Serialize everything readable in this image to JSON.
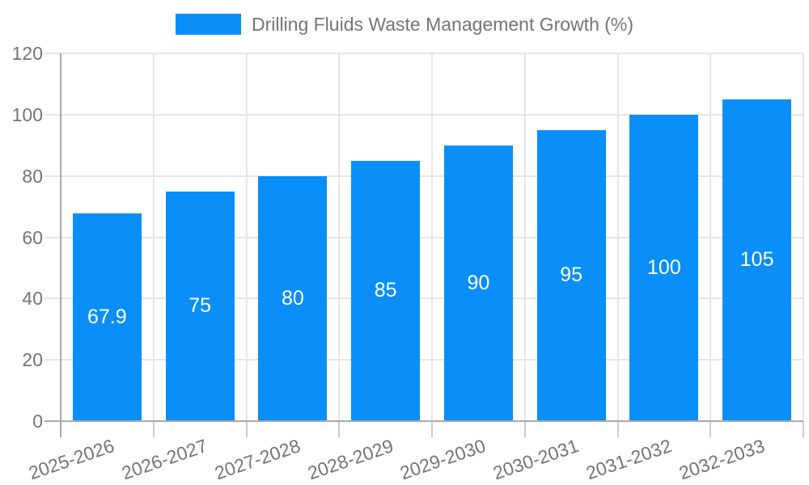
{
  "chart_data": {
    "type": "bar",
    "title": "Drilling Fluids Waste Management Growth (%)",
    "categories": [
      "2025-2026",
      "2026-2027",
      "2027-2028",
      "2028-2029",
      "2029-2030",
      "2030-2031",
      "2031-2032",
      "2032-2033"
    ],
    "values": [
      67.9,
      75,
      80,
      85,
      90,
      95,
      100,
      105
    ],
    "value_labels": [
      "67.9",
      "75",
      "80",
      "85",
      "90",
      "95",
      "100",
      "105"
    ],
    "xlabel": "",
    "ylabel": "",
    "ylim": [
      0,
      120
    ],
    "yticks": [
      0,
      20,
      40,
      60,
      80,
      100,
      120
    ],
    "grid": true,
    "legend_position": "top-center",
    "colors": {
      "bar": "#0a8ff8",
      "grid": "#e6e6e6",
      "axis": "#aaaaaa",
      "tick": "#cccccc",
      "tick_text": "#757575",
      "legend_text": "#757575",
      "value_label_text": "#ffffff",
      "background": "#ffffff"
    }
  },
  "legend": {
    "label": "Drilling Fluids Waste Management Growth (%)",
    "swatch_color": "#0a8ff8"
  }
}
